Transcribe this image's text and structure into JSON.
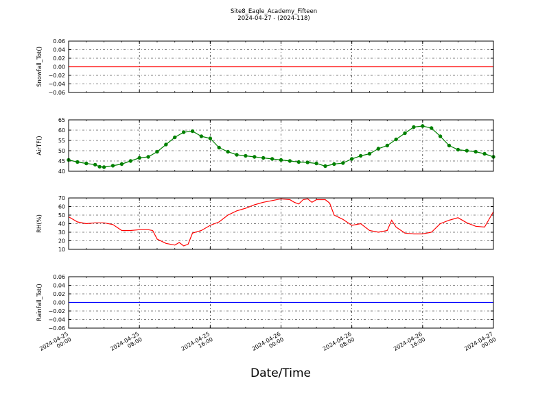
{
  "figure": {
    "title": "Site8_Eagle_Academy_Fifteen",
    "subtitle": "2024-04-27 - (2024-118)",
    "xlabel": "Date/Time",
    "xtick_labels": [
      [
        "2024-04-25",
        "00:00"
      ],
      [
        "2024-04-25",
        "08:00"
      ],
      [
        "2024-04-25",
        "16:00"
      ],
      [
        "2024-04-26",
        "00:00"
      ],
      [
        "2024-04-26",
        "08:00"
      ],
      [
        "2024-04-26",
        "16:00"
      ],
      [
        "2024-04-27",
        "00:00"
      ]
    ]
  },
  "chart_data": [
    {
      "type": "line",
      "ylabel": "Snowfall_Tot()",
      "ylim": [
        -0.06,
        0.06
      ],
      "yticks": [
        -0.06,
        -0.04,
        -0.02,
        0.0,
        0.02,
        0.04,
        0.06
      ],
      "ytick_labels": [
        "−0.06",
        "−0.04",
        "−0.02",
        "0.00",
        "0.02",
        "0.04",
        "0.06"
      ],
      "xlim": [
        0,
        48
      ],
      "grid": true,
      "color": "#ff0000",
      "marker": "none",
      "x": [
        0,
        48
      ],
      "y": [
        0,
        0
      ]
    },
    {
      "type": "line",
      "ylabel": "AirTF()",
      "ylim": [
        40,
        65
      ],
      "yticks": [
        40,
        45,
        50,
        55,
        60,
        65
      ],
      "ytick_labels": [
        "40",
        "45",
        "50",
        "55",
        "60",
        "65"
      ],
      "xlim": [
        0,
        48
      ],
      "grid": true,
      "color": "#008000",
      "marker": "dot",
      "x": [
        0,
        1,
        2,
        3,
        3.5,
        4,
        5,
        6,
        7,
        8,
        9,
        10,
        11,
        12,
        13,
        14,
        15,
        16,
        17,
        18,
        19,
        20,
        21,
        22,
        23,
        24,
        25,
        26,
        27,
        28,
        29,
        30,
        31,
        32,
        33,
        34,
        35,
        36,
        37,
        38,
        39,
        40,
        41,
        42,
        43,
        44,
        45,
        46,
        47,
        48
      ],
      "y": [
        45.5,
        44.5,
        43.8,
        43.2,
        42.2,
        42.0,
        42.7,
        43.5,
        45.0,
        46.5,
        47.0,
        49.5,
        53.0,
        56.5,
        59.0,
        59.5,
        57.0,
        56.0,
        51.5,
        49.5,
        48.0,
        47.5,
        47.0,
        46.5,
        46.0,
        45.5,
        45.0,
        44.5,
        44.3,
        43.8,
        42.5,
        43.5,
        44.0,
        46.0,
        47.5,
        48.5,
        51.0,
        52.5,
        55.5,
        58.5,
        61.5,
        62.0,
        61.0,
        57.0,
        52.5,
        50.5,
        50.0,
        49.5,
        48.5,
        47.0
      ]
    },
    {
      "type": "line",
      "ylabel": "RH(%)",
      "ylim": [
        10,
        70
      ],
      "yticks": [
        10,
        20,
        30,
        40,
        50,
        60,
        70
      ],
      "ytick_labels": [
        "10",
        "20",
        "30",
        "40",
        "50",
        "60",
        "70"
      ],
      "xlim": [
        0,
        48
      ],
      "grid": true,
      "color": "#ff0000",
      "marker": "none",
      "x": [
        0,
        1,
        2,
        3,
        4,
        5,
        6,
        7,
        8,
        9,
        9.5,
        10,
        11,
        12,
        12.5,
        13,
        13.5,
        14,
        15,
        16,
        17,
        18,
        19,
        20,
        21,
        22,
        23,
        24,
        25,
        25.5,
        26,
        26.5,
        27,
        27.5,
        28,
        29,
        29.5,
        30,
        31,
        32,
        33,
        34,
        35,
        36,
        36.5,
        37,
        38,
        39,
        40,
        41,
        42,
        43,
        44,
        45,
        46,
        47,
        48
      ],
      "y": [
        48,
        42,
        40,
        41,
        41,
        39,
        32,
        32,
        33,
        33,
        32,
        22,
        17,
        15,
        18,
        14,
        16,
        29,
        32,
        38,
        42,
        50,
        55,
        58,
        62,
        65,
        67,
        69,
        68,
        65,
        63,
        68,
        69,
        65,
        68,
        68,
        64,
        50,
        45,
        38,
        40,
        32,
        30,
        32,
        44,
        36,
        29,
        28,
        28,
        30,
        40,
        44,
        47,
        41,
        37,
        36,
        54
      ]
    },
    {
      "type": "line",
      "ylabel": "Rainfall_Tot()",
      "ylim": [
        -0.06,
        0.06
      ],
      "yticks": [
        -0.06,
        -0.04,
        -0.02,
        0.0,
        0.02,
        0.04,
        0.06
      ],
      "ytick_labels": [
        "−0.06",
        "−0.04",
        "−0.02",
        "0.00",
        "0.02",
        "0.04",
        "0.06"
      ],
      "xlim": [
        0,
        48
      ],
      "grid": true,
      "color": "#0000ff",
      "marker": "none",
      "x": [
        0,
        48
      ],
      "y": [
        0,
        0
      ]
    }
  ]
}
